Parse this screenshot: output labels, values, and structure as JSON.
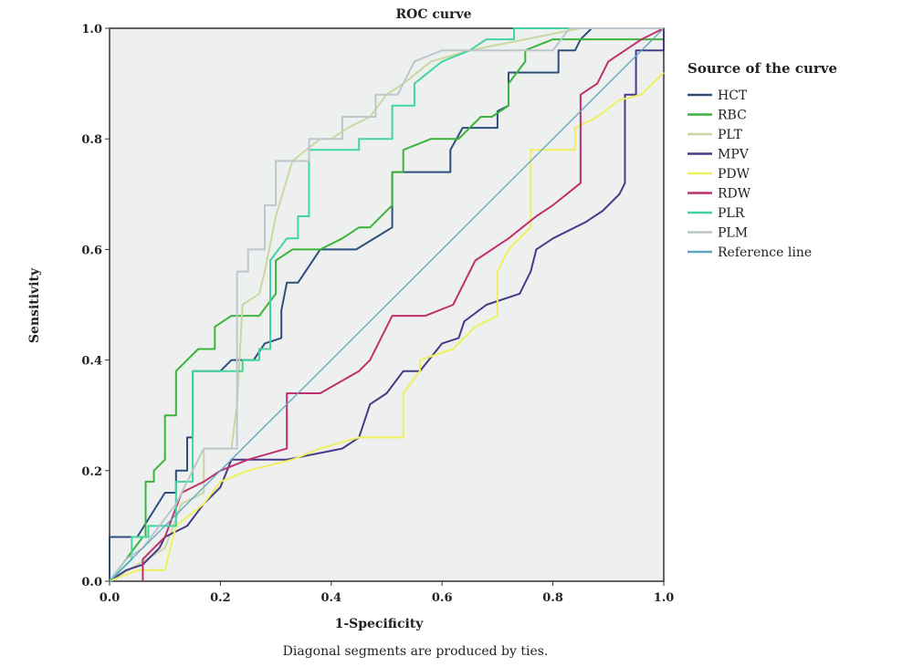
{
  "chart_data": {
    "type": "line",
    "title": "ROC curve",
    "xlabel": "1-Specificity",
    "ylabel": "Sensitivity",
    "xlim": [
      0,
      1
    ],
    "ylim": [
      0,
      1
    ],
    "xticks": [
      "0.0",
      "0.2",
      "0.4",
      "0.6",
      "0.8",
      "1.0"
    ],
    "yticks": [
      "0.0",
      "0.2",
      "0.4",
      "0.6",
      "0.8",
      "1.0"
    ],
    "grid": false,
    "legend_title": "Source of the curve",
    "legend_position": "right",
    "footnote": "Diagonal segments are produced by ties.",
    "series": [
      {
        "name": "HCT",
        "color": "#2c4f7c",
        "points": [
          [
            0,
            0
          ],
          [
            0,
            0.08
          ],
          [
            0.05,
            0.08
          ],
          [
            0.1,
            0.16
          ],
          [
            0.12,
            0.16
          ],
          [
            0.12,
            0.2
          ],
          [
            0.14,
            0.2
          ],
          [
            0.14,
            0.26
          ],
          [
            0.15,
            0.26
          ],
          [
            0.15,
            0.38
          ],
          [
            0.2,
            0.38
          ],
          [
            0.22,
            0.4
          ],
          [
            0.26,
            0.4
          ],
          [
            0.28,
            0.43
          ],
          [
            0.31,
            0.44
          ],
          [
            0.31,
            0.49
          ],
          [
            0.32,
            0.54
          ],
          [
            0.34,
            0.54
          ],
          [
            0.38,
            0.6
          ],
          [
            0.445,
            0.6
          ],
          [
            0.51,
            0.64
          ],
          [
            0.51,
            0.74
          ],
          [
            0.615,
            0.74
          ],
          [
            0.615,
            0.78
          ],
          [
            0.637,
            0.82
          ],
          [
            0.7,
            0.82
          ],
          [
            0.7,
            0.85
          ],
          [
            0.72,
            0.86
          ],
          [
            0.72,
            0.92
          ],
          [
            0.81,
            0.92
          ],
          [
            0.81,
            0.96
          ],
          [
            0.84,
            0.96
          ],
          [
            0.85,
            0.98
          ],
          [
            0.87,
            1
          ],
          [
            1,
            1
          ]
        ]
      },
      {
        "name": "RBC",
        "color": "#3cb43c",
        "points": [
          [
            0,
            0
          ],
          [
            0.06,
            0.08
          ],
          [
            0.065,
            0.08
          ],
          [
            0.065,
            0.18
          ],
          [
            0.08,
            0.18
          ],
          [
            0.08,
            0.2
          ],
          [
            0.1,
            0.22
          ],
          [
            0.1,
            0.3
          ],
          [
            0.12,
            0.3
          ],
          [
            0.12,
            0.38
          ],
          [
            0.16,
            0.42
          ],
          [
            0.19,
            0.42
          ],
          [
            0.19,
            0.46
          ],
          [
            0.22,
            0.48
          ],
          [
            0.27,
            0.48
          ],
          [
            0.3,
            0.52
          ],
          [
            0.3,
            0.58
          ],
          [
            0.33,
            0.6
          ],
          [
            0.38,
            0.6
          ],
          [
            0.42,
            0.62
          ],
          [
            0.45,
            0.64
          ],
          [
            0.47,
            0.64
          ],
          [
            0.51,
            0.68
          ],
          [
            0.51,
            0.74
          ],
          [
            0.53,
            0.74
          ],
          [
            0.53,
            0.78
          ],
          [
            0.58,
            0.8
          ],
          [
            0.63,
            0.8
          ],
          [
            0.65,
            0.82
          ],
          [
            0.67,
            0.84
          ],
          [
            0.69,
            0.84
          ],
          [
            0.72,
            0.86
          ],
          [
            0.72,
            0.9
          ],
          [
            0.75,
            0.94
          ],
          [
            0.75,
            0.96
          ],
          [
            0.8,
            0.98
          ],
          [
            1,
            0.98
          ],
          [
            1,
            1
          ]
        ]
      },
      {
        "name": "PLT",
        "color": "#c8d8a0",
        "points": [
          [
            0,
            0
          ],
          [
            0.1,
            0.06
          ],
          [
            0.13,
            0.14
          ],
          [
            0.17,
            0.16
          ],
          [
            0.17,
            0.24
          ],
          [
            0.22,
            0.24
          ],
          [
            0.23,
            0.32
          ],
          [
            0.24,
            0.5
          ],
          [
            0.27,
            0.52
          ],
          [
            0.28,
            0.56
          ],
          [
            0.3,
            0.66
          ],
          [
            0.33,
            0.76
          ],
          [
            0.38,
            0.8
          ],
          [
            0.4,
            0.8
          ],
          [
            0.43,
            0.82
          ],
          [
            0.47,
            0.84
          ],
          [
            0.5,
            0.88
          ],
          [
            0.53,
            0.9
          ],
          [
            0.58,
            0.94
          ],
          [
            0.65,
            0.96
          ],
          [
            0.75,
            0.98
          ],
          [
            0.85,
            1
          ],
          [
            1,
            1
          ]
        ]
      },
      {
        "name": "MPV",
        "color": "#463a86",
        "points": [
          [
            0,
            0
          ],
          [
            0.03,
            0.02
          ],
          [
            0.06,
            0.03
          ],
          [
            0.09,
            0.06
          ],
          [
            0.1,
            0.08
          ],
          [
            0.14,
            0.1
          ],
          [
            0.17,
            0.14
          ],
          [
            0.2,
            0.17
          ],
          [
            0.22,
            0.22
          ],
          [
            0.32,
            0.22
          ],
          [
            0.42,
            0.24
          ],
          [
            0.45,
            0.26
          ],
          [
            0.47,
            0.32
          ],
          [
            0.5,
            0.34
          ],
          [
            0.53,
            0.38
          ],
          [
            0.56,
            0.38
          ],
          [
            0.6,
            0.43
          ],
          [
            0.63,
            0.44
          ],
          [
            0.64,
            0.47
          ],
          [
            0.68,
            0.5
          ],
          [
            0.74,
            0.52
          ],
          [
            0.76,
            0.56
          ],
          [
            0.77,
            0.6
          ],
          [
            0.8,
            0.62
          ],
          [
            0.86,
            0.65
          ],
          [
            0.89,
            0.67
          ],
          [
            0.92,
            0.7
          ],
          [
            0.93,
            0.72
          ],
          [
            0.93,
            0.88
          ],
          [
            0.95,
            0.88
          ],
          [
            0.95,
            0.96
          ],
          [
            1,
            0.96
          ],
          [
            1,
            1
          ]
        ]
      },
      {
        "name": "PDW",
        "color": "#eef060",
        "points": [
          [
            0,
            0
          ],
          [
            0.05,
            0.02
          ],
          [
            0.1,
            0.02
          ],
          [
            0.12,
            0.1
          ],
          [
            0.17,
            0.14
          ],
          [
            0.2,
            0.18
          ],
          [
            0.25,
            0.2
          ],
          [
            0.33,
            0.22
          ],
          [
            0.38,
            0.24
          ],
          [
            0.45,
            0.26
          ],
          [
            0.53,
            0.26
          ],
          [
            0.53,
            0.34
          ],
          [
            0.56,
            0.38
          ],
          [
            0.56,
            0.4
          ],
          [
            0.62,
            0.42
          ],
          [
            0.66,
            0.46
          ],
          [
            0.7,
            0.48
          ],
          [
            0.7,
            0.56
          ],
          [
            0.72,
            0.6
          ],
          [
            0.76,
            0.64
          ],
          [
            0.76,
            0.78
          ],
          [
            0.84,
            0.78
          ],
          [
            0.84,
            0.82
          ],
          [
            0.88,
            0.84
          ],
          [
            0.92,
            0.87
          ],
          [
            0.96,
            0.88
          ],
          [
            1,
            0.92
          ]
        ]
      },
      {
        "name": "RDW",
        "color": "#c0306c",
        "points": [
          [
            0.06,
            0
          ],
          [
            0.06,
            0.04
          ],
          [
            0.1,
            0.08
          ],
          [
            0.13,
            0.16
          ],
          [
            0.17,
            0.18
          ],
          [
            0.2,
            0.2
          ],
          [
            0.25,
            0.22
          ],
          [
            0.32,
            0.24
          ],
          [
            0.32,
            0.34
          ],
          [
            0.38,
            0.34
          ],
          [
            0.45,
            0.38
          ],
          [
            0.47,
            0.4
          ],
          [
            0.51,
            0.48
          ],
          [
            0.57,
            0.48
          ],
          [
            0.62,
            0.5
          ],
          [
            0.66,
            0.58
          ],
          [
            0.72,
            0.62
          ],
          [
            0.77,
            0.66
          ],
          [
            0.8,
            0.68
          ],
          [
            0.85,
            0.72
          ],
          [
            0.85,
            0.88
          ],
          [
            0.88,
            0.9
          ],
          [
            0.9,
            0.94
          ],
          [
            0.96,
            0.98
          ],
          [
            1,
            1
          ]
        ]
      },
      {
        "name": "PLR",
        "color": "#40d4a0",
        "points": [
          [
            0,
            0
          ],
          [
            0.04,
            0.04
          ],
          [
            0.04,
            0.08
          ],
          [
            0.07,
            0.08
          ],
          [
            0.07,
            0.1
          ],
          [
            0.12,
            0.1
          ],
          [
            0.12,
            0.18
          ],
          [
            0.15,
            0.18
          ],
          [
            0.15,
            0.38
          ],
          [
            0.24,
            0.38
          ],
          [
            0.24,
            0.4
          ],
          [
            0.27,
            0.4
          ],
          [
            0.27,
            0.42
          ],
          [
            0.29,
            0.42
          ],
          [
            0.29,
            0.58
          ],
          [
            0.32,
            0.62
          ],
          [
            0.34,
            0.62
          ],
          [
            0.34,
            0.66
          ],
          [
            0.36,
            0.66
          ],
          [
            0.36,
            0.78
          ],
          [
            0.45,
            0.78
          ],
          [
            0.45,
            0.8
          ],
          [
            0.51,
            0.8
          ],
          [
            0.51,
            0.86
          ],
          [
            0.55,
            0.86
          ],
          [
            0.55,
            0.9
          ],
          [
            0.6,
            0.94
          ],
          [
            0.65,
            0.96
          ],
          [
            0.68,
            0.98
          ],
          [
            0.73,
            0.98
          ],
          [
            0.73,
            1
          ],
          [
            1,
            1
          ]
        ]
      },
      {
        "name": "PLM",
        "color": "#bcc6cc",
        "points": [
          [
            0,
            0
          ],
          [
            0.03,
            0.04
          ],
          [
            0.06,
            0.06
          ],
          [
            0.12,
            0.14
          ],
          [
            0.17,
            0.24
          ],
          [
            0.23,
            0.24
          ],
          [
            0.23,
            0.56
          ],
          [
            0.25,
            0.56
          ],
          [
            0.25,
            0.6
          ],
          [
            0.28,
            0.6
          ],
          [
            0.28,
            0.68
          ],
          [
            0.3,
            0.68
          ],
          [
            0.3,
            0.76
          ],
          [
            0.36,
            0.76
          ],
          [
            0.36,
            0.8
          ],
          [
            0.42,
            0.8
          ],
          [
            0.42,
            0.84
          ],
          [
            0.48,
            0.84
          ],
          [
            0.48,
            0.88
          ],
          [
            0.52,
            0.88
          ],
          [
            0.55,
            0.94
          ],
          [
            0.6,
            0.96
          ],
          [
            0.8,
            0.96
          ],
          [
            0.83,
            1
          ],
          [
            1,
            1
          ]
        ]
      },
      {
        "name": "Reference line",
        "color": "#5ea6be",
        "points": [
          [
            0,
            0
          ],
          [
            1,
            1
          ]
        ]
      }
    ]
  }
}
